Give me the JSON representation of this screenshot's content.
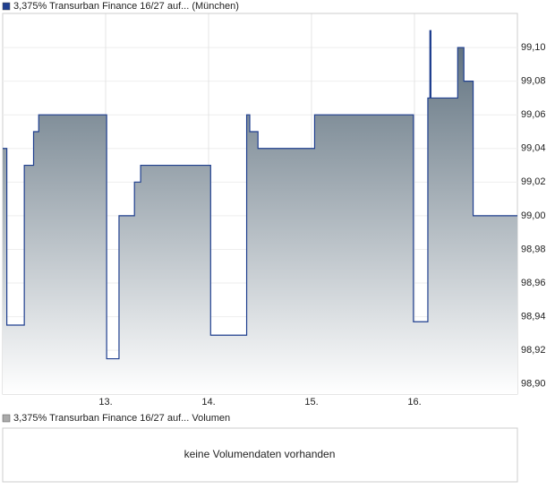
{
  "chart_data": {
    "type": "line",
    "step": true,
    "series": [
      {
        "name": "3,375% Transurban Finance 16/27 auf... (München)",
        "color": "#1f3f8f",
        "values": [
          99.04,
          98.935,
          99.03,
          99.05,
          99.06,
          98.915,
          99.0,
          99.02,
          99.03,
          98.929,
          99.06,
          99.05,
          99.04,
          99.06,
          98.937,
          99.07,
          99.11,
          99.07,
          99.1,
          99.08,
          99.0,
          99.0
        ]
      }
    ],
    "x": [
      12.0,
      12.04,
      12.21,
      12.3,
      12.35,
      13.01,
      13.13,
      13.28,
      13.34,
      14.02,
      14.37,
      14.4,
      14.48,
      15.03,
      15.99,
      16.13,
      16.15,
      16.16,
      16.42,
      16.48,
      16.57,
      17.0
    ],
    "xlim": [
      12,
      17
    ],
    "xticks": [
      {
        "value": 13,
        "label": "13."
      },
      {
        "value": 14,
        "label": "14."
      },
      {
        "value": 15,
        "label": "15."
      },
      {
        "value": 16,
        "label": "16."
      }
    ],
    "ylim": [
      98.894,
      99.12
    ],
    "yticks": [
      {
        "value": 98.9,
        "label": "98,90"
      },
      {
        "value": 98.92,
        "label": "98,92"
      },
      {
        "value": 98.94,
        "label": "98,94"
      },
      {
        "value": 98.96,
        "label": "98,96"
      },
      {
        "value": 98.98,
        "label": "98,98"
      },
      {
        "value": 99.0,
        "label": "99,00"
      },
      {
        "value": 99.02,
        "label": "99,02"
      },
      {
        "value": 99.04,
        "label": "99,04"
      },
      {
        "value": 99.06,
        "label": "99,06"
      },
      {
        "value": 99.08,
        "label": "99,08"
      },
      {
        "value": 99.1,
        "label": "99,10"
      }
    ],
    "grid": true
  },
  "volume_panel": {
    "legend": "3,375% Transurban Finance 16/27 auf... Volumen",
    "message": "keine Volumendaten vorhanden"
  }
}
